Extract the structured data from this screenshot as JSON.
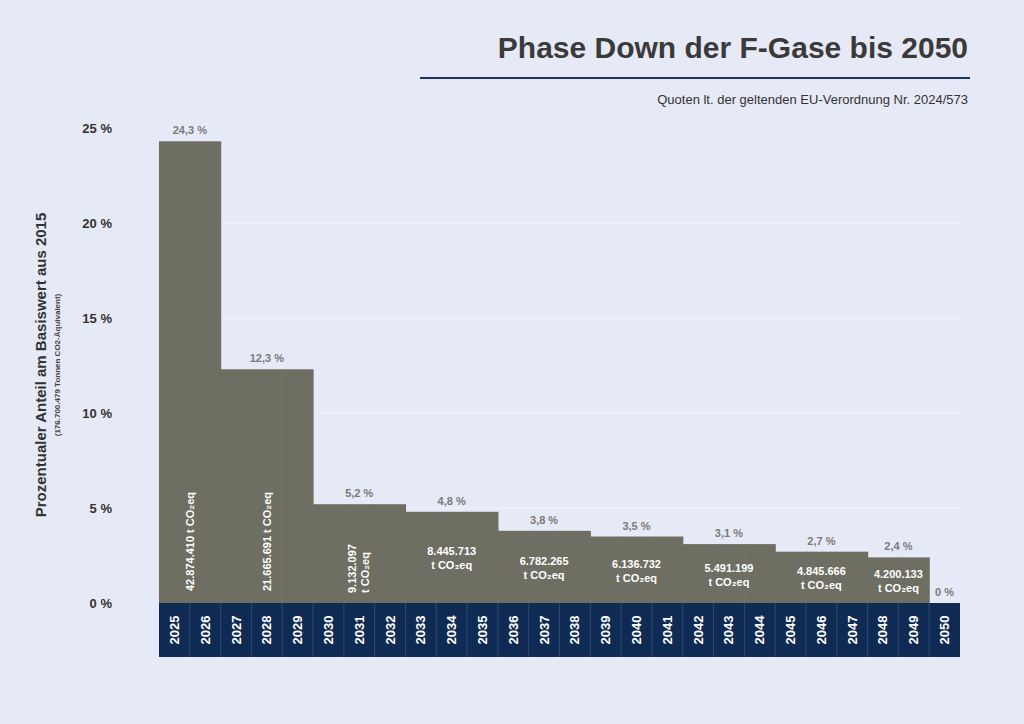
{
  "chart_data": {
    "type": "bar",
    "title": "Phase Down der F-Gase bis 2050",
    "subtitle": "Quoten lt. der geltenden EU-Verordnung Nr. 2024/573",
    "y_label": "Prozentualer Anteil am Basiswert aus 2015",
    "y_sublabel": "(176.700.479 Tonnen CO2-Äquivalent)",
    "categories": [
      "2025",
      "2026",
      "2027",
      "2028",
      "2029",
      "2030",
      "2031",
      "2032",
      "2033",
      "2034",
      "2035",
      "2036",
      "2037",
      "2038",
      "2039",
      "2040",
      "2041",
      "2042",
      "2043",
      "2044",
      "2045",
      "2046",
      "2047",
      "2048",
      "2049",
      "2050"
    ],
    "values": [
      24.3,
      24.3,
      12.3,
      12.3,
      12.3,
      5.2,
      5.2,
      5.2,
      4.8,
      4.8,
      4.8,
      3.8,
      3.8,
      3.8,
      3.5,
      3.5,
      3.5,
      3.1,
      3.1,
      3.1,
      2.7,
      2.7,
      2.7,
      2.4,
      2.4,
      0
    ],
    "value_labels": [
      "24,3 %",
      null,
      "12,3 %",
      null,
      null,
      "5,2 %",
      null,
      null,
      "4,8 %",
      null,
      null,
      "3,8 %",
      null,
      null,
      "3,5 %",
      null,
      null,
      "3,1 %",
      null,
      null,
      "2,7 %",
      null,
      null,
      "2,4 %",
      null,
      "0 %"
    ],
    "amount_labels": [
      "42.874.410 t CO₂eq",
      null,
      "21.665.691 t CO₂eq",
      null,
      null,
      "9.132.097 t CO₂eq",
      null,
      null,
      "8.445.713 t CO₂eq",
      null,
      null,
      "6.782.265 t CO₂eq",
      null,
      null,
      "6.136.732 t CO₂eq",
      null,
      null,
      "5.491.199 t CO₂eq",
      null,
      null,
      "4.845.666 t CO₂eq",
      null,
      null,
      "4.200.133 t CO₂eq",
      null,
      null
    ],
    "color": "#6e6e63",
    "ylim": [
      0,
      25
    ],
    "yticks": [
      {
        "value": 0,
        "label": "0 %"
      },
      {
        "value": 5,
        "label": "5 %"
      },
      {
        "value": 10,
        "label": "10 %"
      },
      {
        "value": 15,
        "label": "15 %"
      },
      {
        "value": 20,
        "label": "20 %"
      },
      {
        "value": 25,
        "label": "25 %"
      }
    ],
    "grid": true,
    "data_labels": true
  }
}
